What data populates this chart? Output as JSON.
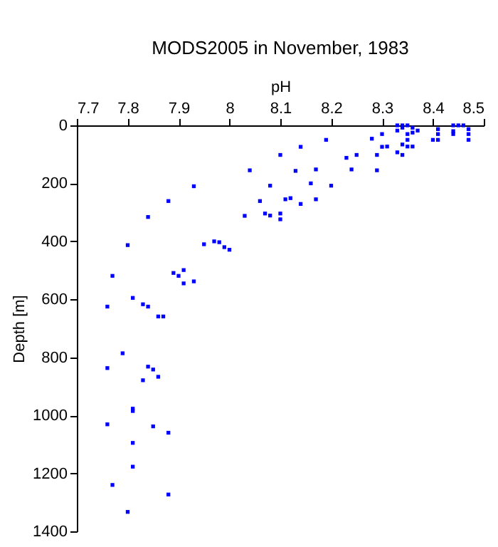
{
  "chart_data": {
    "type": "scatter",
    "title": "MODS2005 in November, 1983",
    "xlabel": "pH",
    "ylabel": "Depth [m]",
    "xlim": [
      7.7,
      8.5
    ],
    "xticks": [
      7.7,
      7.8,
      7.9,
      8,
      8.1,
      8.2,
      8.3,
      8.4,
      8.5
    ],
    "ylim": [
      1400,
      0
    ],
    "yticks": [
      0,
      200,
      400,
      600,
      800,
      1000,
      1200,
      1400
    ],
    "marker": "square",
    "grid": false,
    "series": [
      {
        "color": "#0000ff",
        "x": [
          7.84,
          7.88,
          7.93,
          8.03,
          8.04,
          8.06,
          8.07,
          8.08,
          8.08,
          8.1,
          8.1,
          8.1,
          8.11,
          8.12,
          8.13,
          8.14,
          8.14,
          8.16,
          8.17,
          8.17,
          8.19,
          8.2,
          8.23,
          8.24,
          8.25,
          8.28,
          8.29,
          8.29,
          8.3,
          8.3,
          8.31,
          8.33,
          8.33,
          8.33,
          8.34,
          8.34,
          8.34,
          8.34,
          8.35,
          8.35,
          8.35,
          8.35,
          8.36,
          8.36,
          8.36,
          8.37,
          8.4,
          8.41,
          8.41,
          8.41,
          8.44,
          8.44,
          8.44,
          8.45,
          8.46,
          8.47,
          8.47,
          8.47,
          7.8,
          7.95,
          7.97,
          7.98,
          7.99,
          8.0,
          7.77,
          7.89,
          7.9,
          7.91,
          7.91,
          7.93,
          7.76,
          7.81,
          7.83,
          7.84,
          7.86,
          7.87,
          7.79,
          7.76,
          7.84,
          7.85,
          7.86,
          7.83,
          7.81,
          7.81,
          7.76,
          7.85,
          7.88,
          7.81,
          7.81,
          7.77,
          7.88,
          7.8
        ],
        "values": [
          316,
          261,
          210,
          312,
          155,
          261,
          304,
          311,
          208,
          102,
          304,
          324,
          255,
          251,
          157,
          271,
          74,
          200,
          152,
          255,
          50,
          208,
          112,
          152,
          102,
          46,
          102,
          155,
          30,
          74,
          73,
          0,
          18,
          93,
          0,
          8,
          66,
          102,
          0,
          30,
          50,
          73,
          8,
          25,
          73,
          18,
          50,
          13,
          30,
          50,
          0,
          20,
          30,
          0,
          0,
          13,
          30,
          50,
          413,
          410,
          400,
          403,
          420,
          429,
          519,
          509,
          519,
          499,
          545,
          538,
          625,
          595,
          617,
          625,
          659,
          659,
          786,
          837,
          832,
          842,
          867,
          879,
          985,
          977,
          1031,
          1038,
          1060,
          1095,
          1177,
          1240,
          1273,
          1333
        ]
      }
    ]
  }
}
